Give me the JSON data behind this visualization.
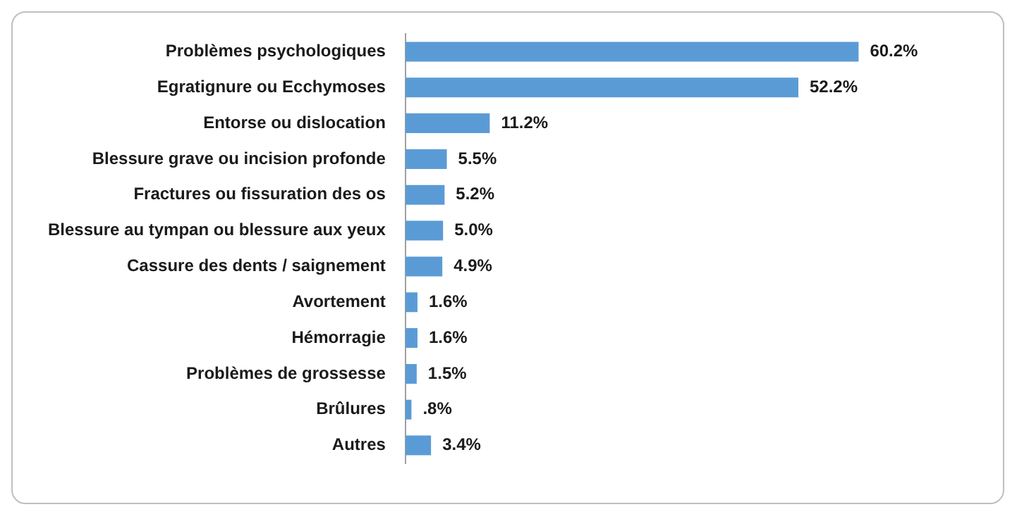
{
  "chart_data": {
    "type": "bar",
    "orientation": "horizontal",
    "categories": [
      "Problèmes psychologiques",
      "Egratignure ou Ecchymoses",
      "Entorse ou dislocation",
      "Blessure grave ou incision profonde",
      "Fractures ou fissuration des os",
      "Blessure au tympan ou blessure aux yeux",
      "Cassure des dents / saignement",
      "Avortement",
      "Hémorragie",
      "Problèmes de grossesse",
      "Brûlures",
      "Autres"
    ],
    "values": [
      60.2,
      52.2,
      11.2,
      5.5,
      5.2,
      5.0,
      4.9,
      1.6,
      1.6,
      1.5,
      0.8,
      3.4
    ],
    "value_labels": [
      "60.2%",
      "52.2%",
      "11.2%",
      "5.5%",
      "5.2%",
      "5.0%",
      "4.9%",
      "1.6%",
      "1.6%",
      "1.5%",
      ".8%",
      "3.4%"
    ],
    "color": "#5b9bd5",
    "grid": false,
    "legend": false,
    "tick_labels": "y"
  }
}
